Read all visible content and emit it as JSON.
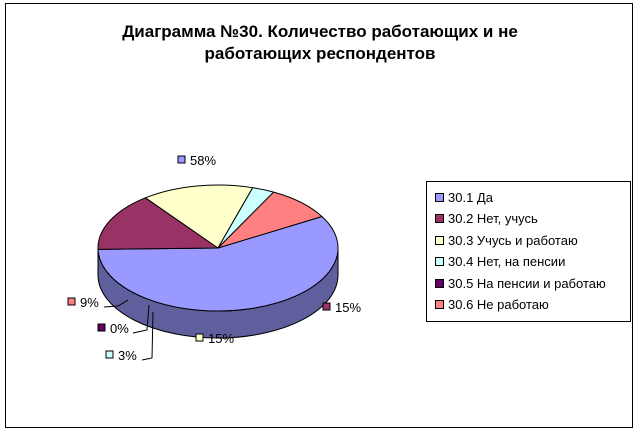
{
  "chart_data": {
    "type": "pie",
    "title_line1": "Диаграмма №30. Количество работающих и не",
    "title_line2": "работающих респондентов",
    "legend_position": "right",
    "slices": [
      {
        "label": "30.1 Да",
        "value": 58,
        "value_label": "58%",
        "color": "#9999ff"
      },
      {
        "label": "30.2 Нет, учусь",
        "value": 15,
        "value_label": "15%",
        "color": "#993366"
      },
      {
        "label": "30.3 Учусь и работаю",
        "value": 15,
        "value_label": "15%",
        "color": "#ffffcc"
      },
      {
        "label": "30.4 Нет, на пенсии",
        "value": 3,
        "value_label": "3%",
        "color": "#ccffff"
      },
      {
        "label": "30.5 На пенсии и работаю",
        "value": 0,
        "value_label": "0%",
        "color": "#660066"
      },
      {
        "label": "30.6 Не работаю",
        "value": 9,
        "value_label": "9%",
        "color": "#ff8080"
      }
    ]
  }
}
